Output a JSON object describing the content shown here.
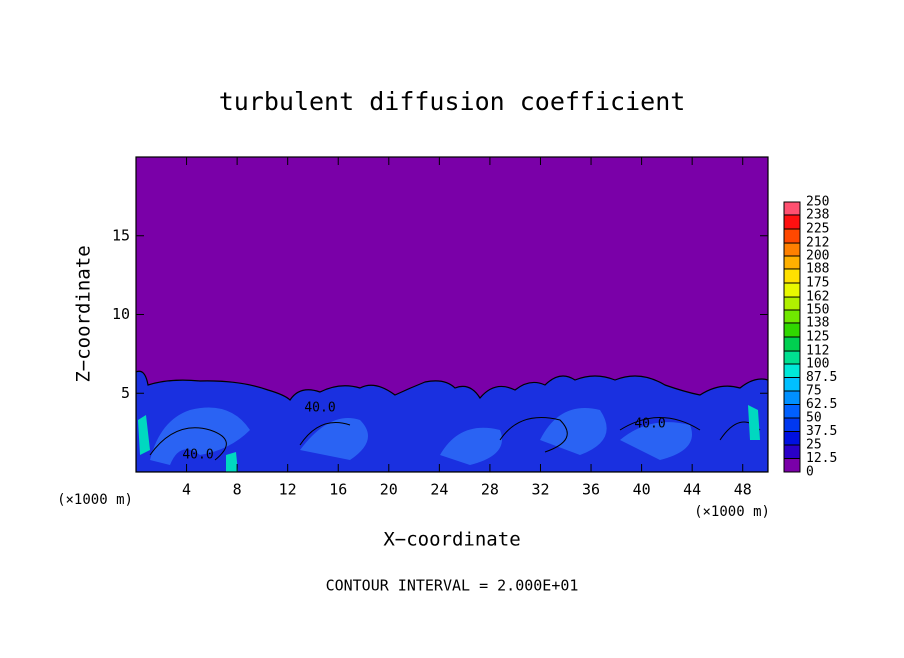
{
  "chart_data": {
    "type": "contour",
    "title": "turbulent diffusion coefficient",
    "x_label": "X−coordinate",
    "y_label": "Z−coordinate",
    "x_unit_left": "(×1000 m)",
    "x_unit_right": "(×1000 m)",
    "footer": "CONTOUR INTERVAL = 2.000E+01",
    "xlim": [
      0,
      50
    ],
    "xticks": [
      4,
      8,
      12,
      16,
      20,
      24,
      28,
      32,
      36,
      40,
      44,
      48
    ],
    "ylim": [
      0,
      20
    ],
    "yticks": [
      5,
      10,
      15
    ],
    "contour_labels": [
      {
        "value": 40,
        "label": "40.0"
      },
      {
        "value": 40,
        "label": "40.0"
      },
      {
        "value": 40,
        "label": "40.0"
      }
    ],
    "colorbar": {
      "ticks": [
        0,
        12.5,
        25,
        37.5,
        50,
        62.5,
        75,
        87.5,
        100,
        112,
        125,
        138,
        150,
        162,
        175,
        188,
        200,
        212,
        225,
        238,
        250
      ],
      "colors": [
        "#7a00a8",
        "#2a00c8",
        "#0010e0",
        "#0038f0",
        "#0060ff",
        "#0090ff",
        "#00c0ff",
        "#00e8d8",
        "#00e090",
        "#00d050",
        "#30d800",
        "#70e800",
        "#b0f000",
        "#e8f800",
        "#ffe000",
        "#ffb000",
        "#ff8000",
        "#ff4800",
        "#ff1010",
        "#ff5070"
      ]
    }
  }
}
